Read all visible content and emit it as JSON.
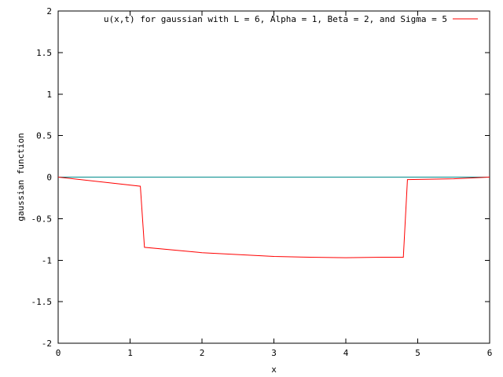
{
  "chart_data": {
    "type": "line",
    "title": "",
    "xlabel": "x",
    "ylabel": "gaussian function",
    "xlim": [
      0,
      6
    ],
    "ylim": [
      -2,
      2
    ],
    "x_ticks": [
      0,
      1,
      2,
      3,
      4,
      5,
      6
    ],
    "x_tick_labels": [
      "0",
      "1",
      "2",
      "3",
      "4",
      "5",
      "6"
    ],
    "y_ticks": [
      -2,
      -1.5,
      -1,
      -0.5,
      0,
      0.5,
      1,
      1.5,
      2
    ],
    "y_tick_labels": [
      "-2",
      "-1.5",
      "-1",
      "-0.5",
      "0",
      "0.5",
      "1",
      "1.5",
      "2"
    ],
    "grid": false,
    "legend_position": "top-right",
    "series": [
      {
        "name": "u(x,t) for gaussian with L = 6, Alpha = 1, Beta = 2, and Sigma = 5",
        "color": "#ff0000",
        "x": [
          0,
          1.143,
          1.2,
          2,
          3,
          3.5,
          4,
          4.5,
          4.8,
          4.857,
          5.5,
          6
        ],
        "y": [
          0,
          -0.11,
          -0.845,
          -0.91,
          -0.955,
          -0.965,
          -0.97,
          -0.965,
          -0.965,
          -0.03,
          -0.02,
          0
        ]
      },
      {
        "color": "#008b8b",
        "x": [
          0,
          6
        ],
        "y": [
          0,
          0
        ]
      }
    ]
  }
}
